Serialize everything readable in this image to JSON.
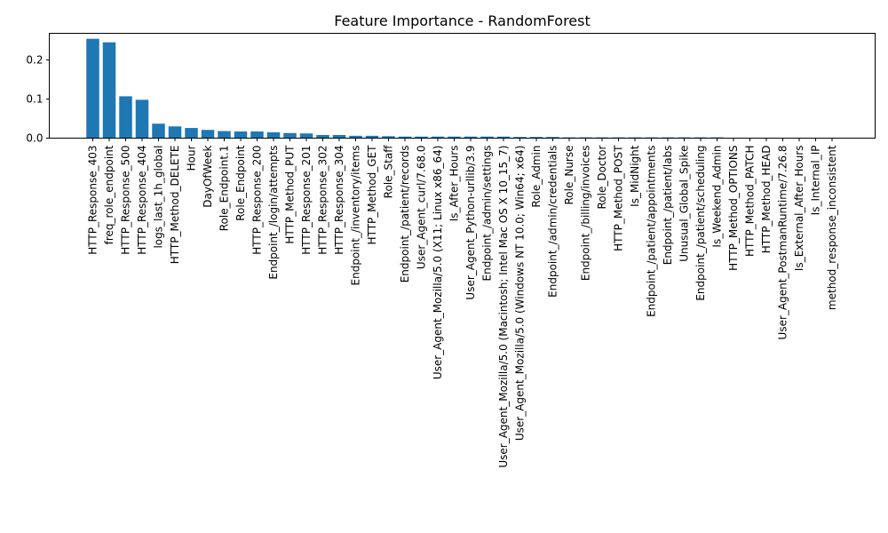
{
  "chart_data": {
    "type": "bar",
    "title": "Feature Importance - RandomForest",
    "xlabel": "",
    "ylabel": "",
    "ylim": [
      0,
      0.268
    ],
    "yticks": [
      "0.0",
      "0.1",
      "0.2"
    ],
    "ytick_values": [
      0.0,
      0.1,
      0.2
    ],
    "color": "#1f77b4",
    "grid": false,
    "categories": [
      "HTTP_Response_403",
      "freq_role_endpoint",
      "HTTP_Response_500",
      "HTTP_Response_404",
      "logs_last_1h_global",
      "HTTP_Method_DELETE",
      "Hour",
      "DayOfWeek",
      "Role_Endpoint.1",
      "Role_Endpoint",
      "HTTP_Response_200",
      "Endpoint_/login/attempts",
      "HTTP_Method_PUT",
      "HTTP_Response_201",
      "HTTP_Response_302",
      "HTTP_Response_304",
      "Endpoint_/inventory/items",
      "HTTP_Method_GET",
      "Role_Staff",
      "Endpoint_/patient/records",
      "User_Agent_curl/7.68.0",
      "User_Agent_Mozilla/5.0 (X11; Linux x86_64)",
      "Is_After_Hours",
      "User_Agent_Python-urllib/3.9",
      "Endpoint_/admin/settings",
      "User_Agent_Mozilla/5.0 (Macintosh; Intel Mac OS X 10_15_7)",
      "User_Agent_Mozilla/5.0 (Windows NT 10.0; Win64; x64)",
      "Role_Admin",
      "Endpoint_/admin/credentials",
      "Role_Nurse",
      "Endpoint_/billing/invoices",
      "Role_Doctor",
      "HTTP_Method_POST",
      "Is_MidNight",
      "Endpoint_/patient/appointments",
      "Endpoint_/patient/labs",
      "Unusual_Global_Spike",
      "Endpoint_/patient/scheduling",
      "Is_Weekend_Admin",
      "HTTP_Method_OPTIONS",
      "HTTP_Method_PATCH",
      "HTTP_Method_HEAD",
      "User_Agent_PostmanRuntime/7.26.8",
      "Is_External_After_Hours",
      "Is_Internal_IP",
      "method_response_inconsistent"
    ],
    "values": [
      0.254,
      0.245,
      0.107,
      0.098,
      0.037,
      0.03,
      0.026,
      0.021,
      0.018,
      0.017,
      0.017,
      0.015,
      0.013,
      0.012,
      0.008,
      0.008,
      0.006,
      0.006,
      0.005,
      0.004,
      0.004,
      0.004,
      0.004,
      0.004,
      0.004,
      0.004,
      0.003,
      0.003,
      0.003,
      0.002,
      0.002,
      0.002,
      0.002,
      0.002,
      0.002,
      0.002,
      0.002,
      0.002,
      0.002,
      0.001,
      0.001,
      0.001,
      0.001,
      0.0005,
      0.0003,
      0.0002
    ]
  }
}
